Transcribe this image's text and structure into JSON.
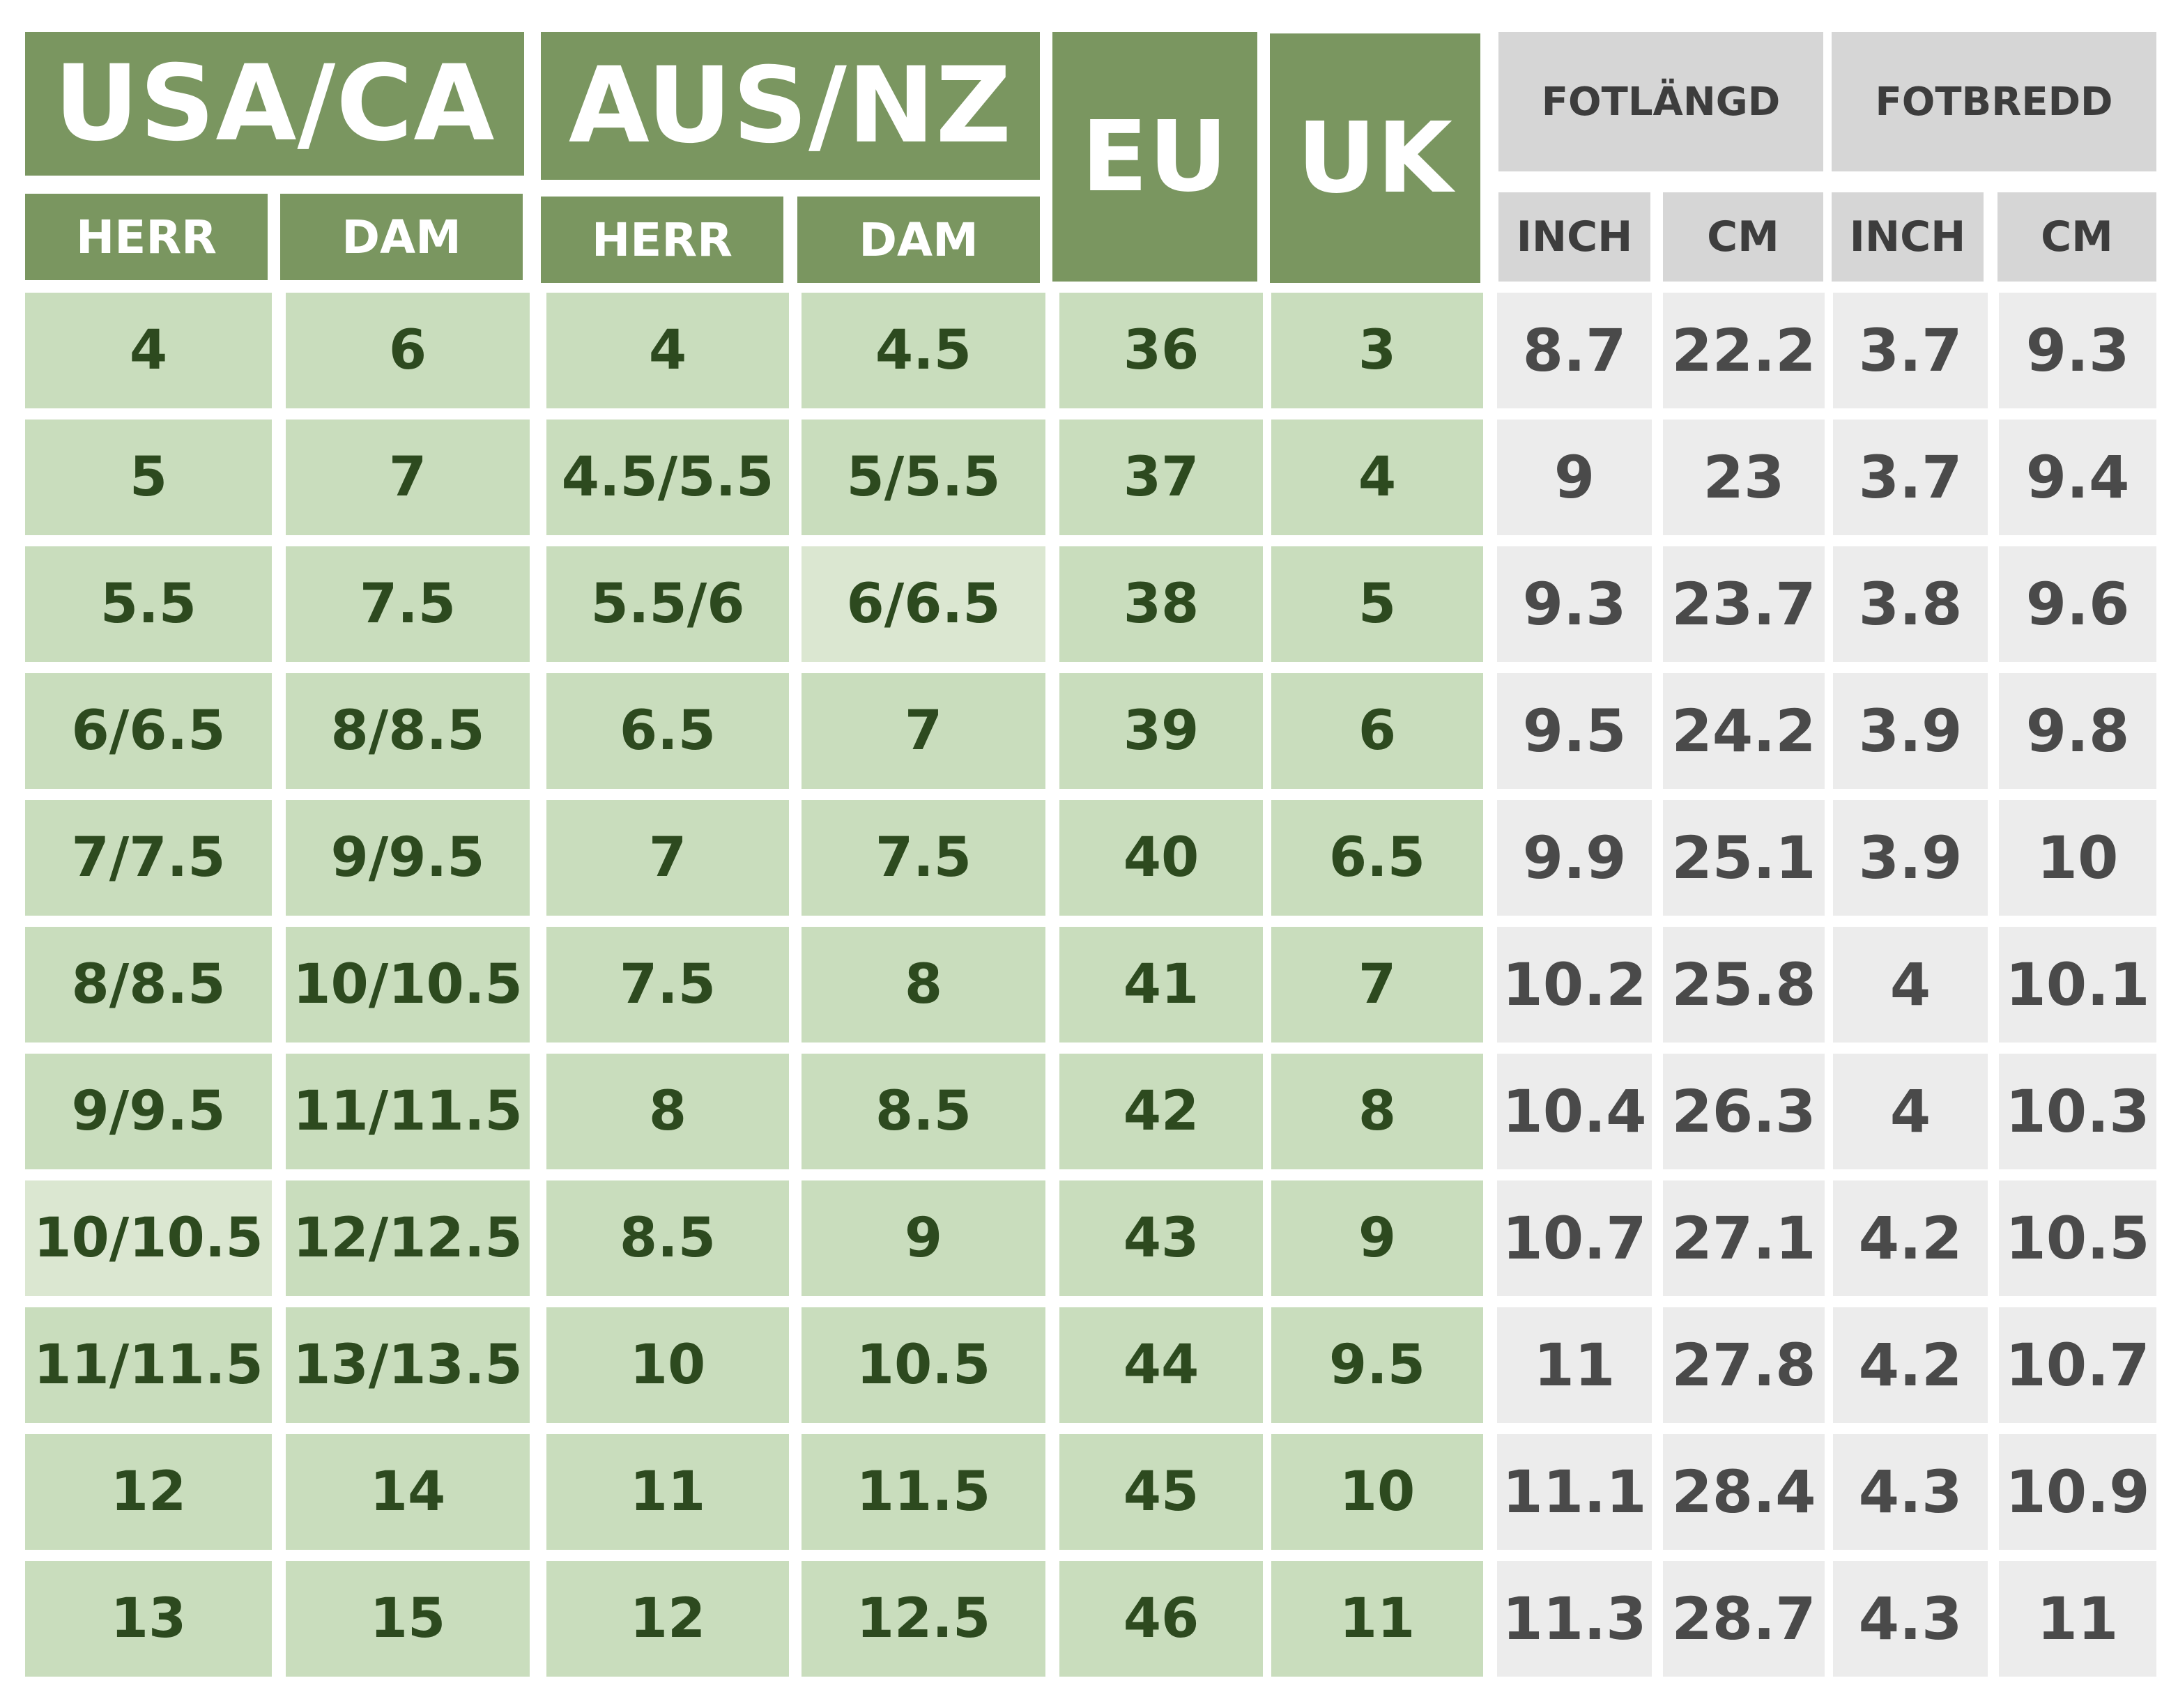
{
  "headers": {
    "usa_ca": "USA/CA",
    "aus_nz": "AUS/NZ",
    "eu": "EU",
    "uk": "UK",
    "fotlangd": "FOTLÄNGD",
    "fotbredd": "FOTBREDD",
    "herr": "HERR",
    "dam": "DAM",
    "inch": "INCH",
    "cm": "CM"
  },
  "colors": {
    "header_green": "#7a9660",
    "cell_green": "#c9ddbd",
    "cell_green_light": "#dbe7d1",
    "green_text": "#2d4a1f",
    "header_grey": "#d6d6d6",
    "cell_grey": "#ececec",
    "grey_text": "#4a4a4a"
  },
  "rows": [
    [
      "4",
      "6",
      "4",
      "4.5",
      "36",
      "3",
      "8.7",
      "22.2",
      "3.7",
      "9.3"
    ],
    [
      "5",
      "7",
      "4.5/5.5",
      "5/5.5",
      "37",
      "4",
      "9",
      "23",
      "3.7",
      "9.4"
    ],
    [
      "5.5",
      "7.5",
      "5.5/6",
      "6/6.5",
      "38",
      "5",
      "9.3",
      "23.7",
      "3.8",
      "9.6"
    ],
    [
      "6/6.5",
      "8/8.5",
      "6.5",
      "7",
      "39",
      "6",
      "9.5",
      "24.2",
      "3.9",
      "9.8"
    ],
    [
      "7/7.5",
      "9/9.5",
      "7",
      "7.5",
      "40",
      "6.5",
      "9.9",
      "25.1",
      "3.9",
      "10"
    ],
    [
      "8/8.5",
      "10/10.5",
      "7.5",
      "8",
      "41",
      "7",
      "10.2",
      "25.8",
      "4",
      "10.1"
    ],
    [
      "9/9.5",
      "11/11.5",
      "8",
      "8.5",
      "42",
      "8",
      "10.4",
      "26.3",
      "4",
      "10.3"
    ],
    [
      "10/10.5",
      "12/12.5",
      "8.5",
      "9",
      "43",
      "9",
      "10.7",
      "27.1",
      "4.2",
      "10.5"
    ],
    [
      "11/11.5",
      "13/13.5",
      "10",
      "10.5",
      "44",
      "9.5",
      "11",
      "27.8",
      "4.2",
      "10.7"
    ],
    [
      "12",
      "14",
      "11",
      "11.5",
      "45",
      "10",
      "11.1",
      "28.4",
      "4.3",
      "10.9"
    ],
    [
      "13",
      "15",
      "12",
      "12.5",
      "46",
      "11",
      "11.3",
      "28.7",
      "4.3",
      "11"
    ]
  ]
}
